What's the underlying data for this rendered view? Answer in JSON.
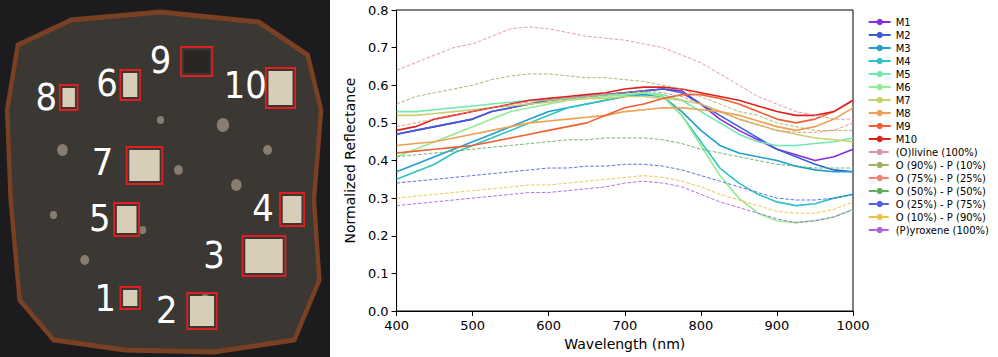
{
  "image_panel": {
    "labels": [
      "1",
      "2",
      "3",
      "4",
      "5",
      "6",
      "7",
      "8",
      "9",
      "10"
    ]
  },
  "chart_data": {
    "type": "line",
    "x_label": "Wavelength (nm)",
    "y_label": "Normalized Reflectance",
    "xlim": [
      400,
      1000
    ],
    "xticks": [
      400,
      500,
      600,
      700,
      800,
      900,
      1000
    ],
    "ylim": [
      0,
      0.8
    ],
    "yticks": [
      {
        "value": 0,
        "label": "0.0"
      },
      {
        "value": 0.1,
        "label": "0.1"
      },
      {
        "value": 0.2,
        "label": "0.2"
      },
      {
        "value": 0.3,
        "label": "0.3"
      },
      {
        "value": 0.4,
        "label": "0.4"
      },
      {
        "value": 0.5,
        "label": "0.5"
      },
      {
        "value": 0.6,
        "label": "0.6"
      },
      {
        "value": 0.7,
        "label": "0.7"
      },
      {
        "value": 0.8,
        "label": "0.8"
      }
    ],
    "grid": false,
    "legend": "right",
    "x": [
      400,
      425,
      450,
      475,
      500,
      525,
      550,
      575,
      600,
      625,
      650,
      675,
      700,
      725,
      750,
      775,
      800,
      825,
      850,
      875,
      900,
      925,
      950,
      975,
      1000
    ],
    "series": [
      {
        "name": "M1",
        "color": "#8a2be2",
        "line_style": "solid",
        "values": [
          0.47,
          0.48,
          0.49,
          0.5,
          0.51,
          0.53,
          0.54,
          0.55,
          0.56,
          0.565,
          0.57,
          0.575,
          0.58,
          0.585,
          0.59,
          0.585,
          0.55,
          0.51,
          0.48,
          0.455,
          0.43,
          0.415,
          0.4,
          0.41,
          0.43
        ]
      },
      {
        "name": "M2",
        "color": "#3a5fd8",
        "line_style": "solid",
        "values": [
          0.47,
          0.48,
          0.49,
          0.5,
          0.51,
          0.53,
          0.54,
          0.55,
          0.56,
          0.565,
          0.57,
          0.575,
          0.58,
          0.585,
          0.59,
          0.58,
          0.55,
          0.52,
          0.49,
          0.46,
          0.43,
          0.41,
          0.39,
          0.375,
          0.37
        ]
      },
      {
        "name": "M3",
        "color": "#1f9fd0",
        "line_style": "solid",
        "values": [
          0.37,
          0.39,
          0.41,
          0.43,
          0.45,
          0.47,
          0.49,
          0.51,
          0.53,
          0.54,
          0.55,
          0.56,
          0.57,
          0.575,
          0.57,
          0.53,
          0.48,
          0.44,
          0.42,
          0.41,
          0.4,
          0.385,
          0.375,
          0.37,
          0.37
        ]
      },
      {
        "name": "M4",
        "color": "#2ec4c4",
        "line_style": "solid",
        "values": [
          0.35,
          0.37,
          0.39,
          0.42,
          0.44,
          0.46,
          0.48,
          0.5,
          0.52,
          0.54,
          0.55,
          0.56,
          0.57,
          0.58,
          0.57,
          0.52,
          0.45,
          0.38,
          0.34,
          0.31,
          0.29,
          0.28,
          0.285,
          0.3,
          0.31
        ]
      },
      {
        "name": "M5",
        "color": "#70e8b0",
        "line_style": "solid",
        "values": [
          0.53,
          0.53,
          0.535,
          0.54,
          0.545,
          0.55,
          0.555,
          0.56,
          0.56,
          0.565,
          0.57,
          0.575,
          0.575,
          0.58,
          0.575,
          0.56,
          0.53,
          0.5,
          0.47,
          0.45,
          0.44,
          0.44,
          0.445,
          0.45,
          0.46
        ]
      },
      {
        "name": "M6",
        "color": "#90ee90",
        "line_style": "solid",
        "values": [
          0.41,
          0.43,
          0.45,
          0.47,
          0.49,
          0.51,
          0.53,
          0.54,
          0.55,
          0.56,
          0.565,
          0.57,
          0.575,
          0.58,
          0.57,
          0.52,
          0.44,
          0.36,
          0.3,
          0.26,
          0.24,
          0.235,
          0.24,
          0.25,
          0.27
        ]
      },
      {
        "name": "M7",
        "color": "#c8d070",
        "line_style": "solid",
        "values": [
          0.52,
          0.52,
          0.525,
          0.53,
          0.535,
          0.54,
          0.545,
          0.55,
          0.555,
          0.56,
          0.565,
          0.565,
          0.57,
          0.57,
          0.565,
          0.56,
          0.55,
          0.53,
          0.51,
          0.495,
          0.48,
          0.47,
          0.46,
          0.455,
          0.45
        ]
      },
      {
        "name": "M8",
        "color": "#f0a050",
        "line_style": "solid",
        "values": [
          0.44,
          0.445,
          0.45,
          0.46,
          0.47,
          0.48,
          0.49,
          0.5,
          0.505,
          0.51,
          0.515,
          0.52,
          0.53,
          0.535,
          0.54,
          0.54,
          0.535,
          0.53,
          0.52,
          0.505,
          0.49,
          0.48,
          0.49,
          0.51,
          0.54
        ]
      },
      {
        "name": "M9",
        "color": "#f06030",
        "line_style": "solid",
        "values": [
          0.42,
          0.425,
          0.43,
          0.435,
          0.44,
          0.45,
          0.46,
          0.47,
          0.48,
          0.49,
          0.5,
          0.52,
          0.54,
          0.55,
          0.565,
          0.575,
          0.575,
          0.565,
          0.55,
          0.53,
          0.51,
          0.5,
          0.51,
          0.53,
          0.56
        ]
      },
      {
        "name": "M10",
        "color": "#e0201c",
        "line_style": "solid",
        "values": [
          0.48,
          0.49,
          0.51,
          0.52,
          0.53,
          0.54,
          0.55,
          0.56,
          0.565,
          0.57,
          0.575,
          0.58,
          0.59,
          0.595,
          0.595,
          0.59,
          0.58,
          0.57,
          0.56,
          0.545,
          0.53,
          0.52,
          0.52,
          0.53,
          0.56
        ]
      },
      {
        "name": "(O)livine (100%)",
        "color": "#e090a0",
        "line_style": "dashed",
        "values": [
          0.64,
          0.66,
          0.68,
          0.7,
          0.71,
          0.73,
          0.75,
          0.755,
          0.75,
          0.74,
          0.73,
          0.725,
          0.72,
          0.71,
          0.7,
          0.68,
          0.66,
          0.63,
          0.6,
          0.57,
          0.55,
          0.53,
          0.52,
          0.51,
          0.51
        ]
      },
      {
        "name": "O (90%) - P (10%)",
        "color": "#a0b060",
        "line_style": "dashed",
        "values": [
          0.55,
          0.57,
          0.58,
          0.59,
          0.6,
          0.615,
          0.625,
          0.63,
          0.63,
          0.625,
          0.62,
          0.62,
          0.615,
          0.61,
          0.6,
          0.59,
          0.57,
          0.55,
          0.53,
          0.52,
          0.5,
          0.49,
          0.48,
          0.48,
          0.48
        ]
      },
      {
        "name": "O (75%) - P (25%)",
        "color": "#f08070",
        "line_style": "dashed",
        "values": [
          0.49,
          0.5,
          0.51,
          0.52,
          0.53,
          0.54,
          0.55,
          0.555,
          0.56,
          0.565,
          0.57,
          0.575,
          0.58,
          0.585,
          0.58,
          0.57,
          0.55,
          0.53,
          0.51,
          0.495,
          0.48,
          0.475,
          0.475,
          0.48,
          0.5
        ]
      },
      {
        "name": "O (50%) - P (50%)",
        "color": "#60b060",
        "line_style": "dashed",
        "values": [
          0.41,
          0.415,
          0.42,
          0.425,
          0.43,
          0.435,
          0.44,
          0.445,
          0.45,
          0.455,
          0.455,
          0.46,
          0.46,
          0.46,
          0.455,
          0.445,
          0.43,
          0.42,
          0.41,
          0.4,
          0.39,
          0.385,
          0.38,
          0.38,
          0.38
        ]
      },
      {
        "name": "O (25%) - P (75%)",
        "color": "#5060e0",
        "line_style": "dashed",
        "values": [
          0.34,
          0.345,
          0.35,
          0.355,
          0.36,
          0.365,
          0.37,
          0.375,
          0.38,
          0.38,
          0.385,
          0.385,
          0.39,
          0.39,
          0.385,
          0.375,
          0.36,
          0.345,
          0.33,
          0.315,
          0.3,
          0.295,
          0.295,
          0.3,
          0.31
        ]
      },
      {
        "name": "O (10%) - P (90%)",
        "color": "#f0c040",
        "line_style": "dashed",
        "values": [
          0.3,
          0.305,
          0.31,
          0.315,
          0.32,
          0.325,
          0.33,
          0.335,
          0.335,
          0.34,
          0.345,
          0.35,
          0.355,
          0.36,
          0.355,
          0.345,
          0.33,
          0.31,
          0.295,
          0.28,
          0.265,
          0.26,
          0.26,
          0.27,
          0.29
        ]
      },
      {
        "name": "(P)yroxene (100%)",
        "color": "#b060e0",
        "line_style": "dashed",
        "values": [
          0.28,
          0.285,
          0.29,
          0.295,
          0.3,
          0.305,
          0.31,
          0.315,
          0.315,
          0.32,
          0.325,
          0.33,
          0.34,
          0.345,
          0.34,
          0.33,
          0.31,
          0.29,
          0.275,
          0.26,
          0.245,
          0.235,
          0.24,
          0.25,
          0.27
        ]
      }
    ]
  }
}
